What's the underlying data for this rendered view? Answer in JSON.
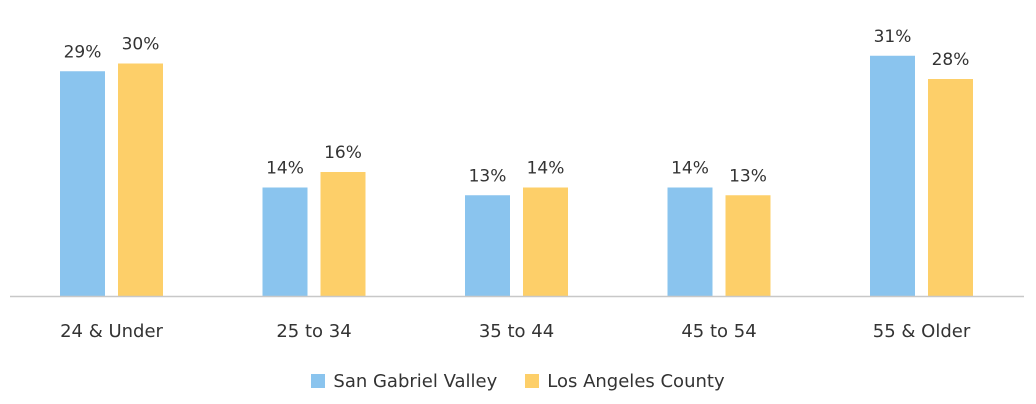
{
  "chart_data": {
    "type": "bar",
    "title": "",
    "xlabel": "",
    "ylabel": "",
    "ylim": [
      0,
      32
    ],
    "grid": false,
    "legend_position": "bottom",
    "categories": [
      "24 & Under",
      "25 to 34",
      "35 to 44",
      "45 to 54",
      "55 & Older"
    ],
    "series": [
      {
        "name": "San Gabriel Valley",
        "color": "#8AC4EE",
        "values": [
          29,
          14,
          13,
          14,
          31
        ],
        "labels": [
          "29%",
          "14%",
          "13%",
          "14%",
          "31%"
        ]
      },
      {
        "name": "Los Angeles County",
        "color": "#FDCF69",
        "values": [
          30,
          16,
          14,
          13,
          28
        ],
        "labels": [
          "30%",
          "16%",
          "14%",
          "13%",
          "28%"
        ]
      }
    ]
  }
}
